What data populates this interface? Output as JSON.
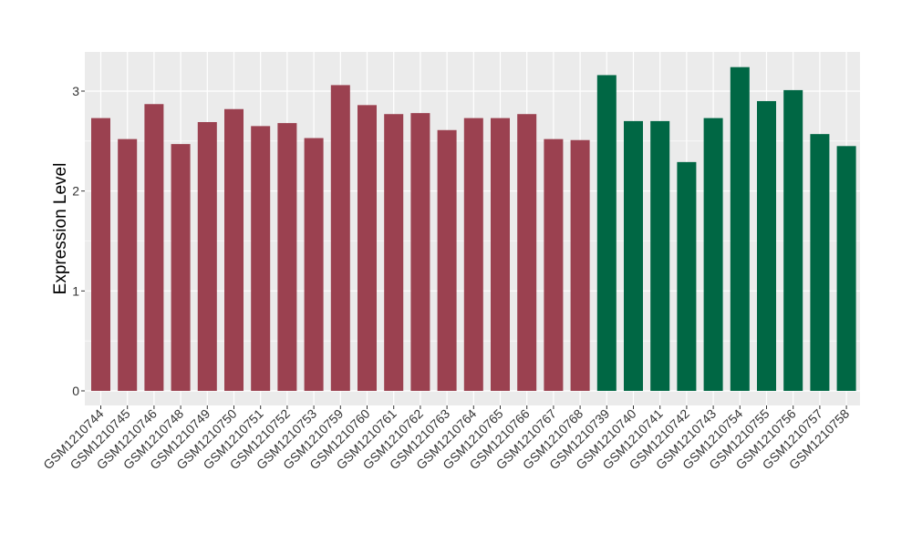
{
  "chart_data": {
    "type": "bar",
    "title": "",
    "xlabel": "",
    "ylabel": "Expression Level",
    "ylim": [
      0,
      3.4
    ],
    "yticks": [
      0,
      1,
      2,
      3
    ],
    "grid": true,
    "legend": "none",
    "categories": [
      "GSM1210744",
      "GSM1210745",
      "GSM1210746",
      "GSM1210748",
      "GSM1210749",
      "GSM1210750",
      "GSM1210751",
      "GSM1210752",
      "GSM1210753",
      "GSM1210759",
      "GSM1210760",
      "GSM1210761",
      "GSM1210762",
      "GSM1210763",
      "GSM1210764",
      "GSM1210765",
      "GSM1210766",
      "GSM1210767",
      "GSM1210768",
      "GSM1210739",
      "GSM1210740",
      "GSM1210741",
      "GSM1210742",
      "GSM1210743",
      "GSM1210754",
      "GSM1210755",
      "GSM1210756",
      "GSM1210757",
      "GSM1210758"
    ],
    "values": [
      2.73,
      2.52,
      2.87,
      2.47,
      2.69,
      2.82,
      2.65,
      2.68,
      2.53,
      3.06,
      2.86,
      2.77,
      2.78,
      2.61,
      2.73,
      2.73,
      2.77,
      2.52,
      2.51,
      3.16,
      2.7,
      2.7,
      2.29,
      2.73,
      3.24,
      2.9,
      3.01,
      2.57,
      2.45
    ],
    "groups": [
      0,
      0,
      0,
      0,
      0,
      0,
      0,
      0,
      0,
      0,
      0,
      0,
      0,
      0,
      0,
      0,
      0,
      0,
      0,
      1,
      1,
      1,
      1,
      1,
      1,
      1,
      1,
      1,
      1
    ],
    "colors": {
      "group_0": "#9b4150",
      "group_1": "#006744",
      "panel_bg": "#ebebeb",
      "grid": "#ffffff"
    }
  }
}
